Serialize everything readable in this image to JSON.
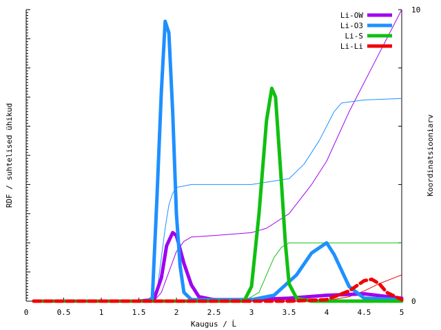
{
  "chart_data": {
    "type": "line",
    "xlabel": "Kaugus / Ĺ",
    "ylabel": "RDF / suhtelised ühikud",
    "y2label": "Koordinatsiooniarv",
    "xlim": [
      0,
      5
    ],
    "ylim_left": [
      0,
      10
    ],
    "ylim_right": [
      0,
      10
    ],
    "x_ticks": [
      "0",
      "0.5",
      "1",
      "1.5",
      "2",
      "2.5",
      "3",
      "3.5",
      "4",
      "4.5",
      "5"
    ],
    "y2_ticks_labeled": [
      "0",
      "10"
    ],
    "grid": false,
    "legend_position": "top-right",
    "rdf_series": [
      {
        "name": "Li-OW",
        "color": "#a000f0",
        "x": [
          0.1,
          1.5,
          1.7,
          1.8,
          1.87,
          1.95,
          2.0,
          2.1,
          2.2,
          2.3,
          2.5,
          3.0,
          3.5,
          4.0,
          4.5,
          5.0
        ],
        "y": [
          0,
          0,
          0.05,
          0.8,
          1.9,
          2.35,
          2.25,
          1.3,
          0.55,
          0.15,
          0.05,
          0.05,
          0.1,
          0.2,
          0.25,
          0.1
        ]
      },
      {
        "name": "Li-O3",
        "color": "#1e90ff",
        "x": [
          0.1,
          1.6,
          1.68,
          1.74,
          1.8,
          1.85,
          1.9,
          1.95,
          2.0,
          2.05,
          2.1,
          2.2,
          2.5,
          3.0,
          3.3,
          3.6,
          3.8,
          4.0,
          4.1,
          4.3,
          4.5,
          5.0
        ],
        "y": [
          0,
          0,
          0.1,
          3.5,
          7.2,
          9.6,
          9.2,
          6.5,
          3.0,
          1.2,
          0.3,
          0.05,
          0.05,
          0.05,
          0.2,
          0.9,
          1.65,
          2.0,
          1.6,
          0.5,
          0.1,
          0.05
        ]
      },
      {
        "name": "Li-S",
        "color": "#10c010",
        "x": [
          0.1,
          2.9,
          3.0,
          3.1,
          3.2,
          3.27,
          3.32,
          3.4,
          3.45,
          3.5,
          3.6,
          3.8,
          5.0
        ],
        "y": [
          0,
          0,
          0.5,
          3.0,
          6.2,
          7.3,
          7.0,
          4.0,
          2.0,
          0.6,
          0.1,
          0,
          0
        ]
      },
      {
        "name": "Li-Li",
        "color": "#f00000",
        "x": [
          0.1,
          3.5,
          4.0,
          4.3,
          4.5,
          4.6,
          4.7,
          4.8,
          5.0
        ],
        "y": [
          0,
          0,
          0.05,
          0.35,
          0.7,
          0.75,
          0.6,
          0.3,
          0.05
        ]
      }
    ],
    "cn_series": [
      {
        "name": "Li-OW",
        "color": "#a000f0",
        "x": [
          0.1,
          1.7,
          1.8,
          1.9,
          2.0,
          2.1,
          2.2,
          2.5,
          3.0,
          3.2,
          3.5,
          3.8,
          4.0,
          4.3,
          4.6,
          5.0
        ],
        "y": [
          0,
          0,
          0.3,
          1.0,
          1.7,
          2.05,
          2.2,
          2.25,
          2.35,
          2.5,
          3.0,
          4.0,
          4.8,
          6.5,
          8.0,
          10.0
        ]
      },
      {
        "name": "Li-O3",
        "color": "#1e90ff",
        "x": [
          0.1,
          1.7,
          1.75,
          1.8,
          1.85,
          1.9,
          1.95,
          2.0,
          2.2,
          2.5,
          3.0,
          3.5,
          3.7,
          3.9,
          4.0,
          4.1,
          4.2,
          4.5,
          5.0
        ],
        "y": [
          0,
          0,
          0.5,
          1.5,
          2.5,
          3.3,
          3.7,
          3.9,
          4.0,
          4.0,
          4.0,
          4.2,
          4.7,
          5.5,
          6.0,
          6.5,
          6.8,
          6.9,
          6.95
        ]
      },
      {
        "name": "Li-S",
        "color": "#10c010",
        "x": [
          0.1,
          2.9,
          3.1,
          3.2,
          3.3,
          3.4,
          3.5,
          3.6,
          5.0
        ],
        "y": [
          0,
          0,
          0.3,
          0.9,
          1.5,
          1.85,
          2.0,
          2.0,
          2.0
        ]
      },
      {
        "name": "Li-Li",
        "color": "#f00000",
        "x": [
          0.1,
          3.5,
          4.0,
          4.3,
          4.5,
          4.7,
          5.0
        ],
        "y": [
          0,
          0,
          0.02,
          0.15,
          0.35,
          0.6,
          0.9
        ]
      }
    ]
  }
}
